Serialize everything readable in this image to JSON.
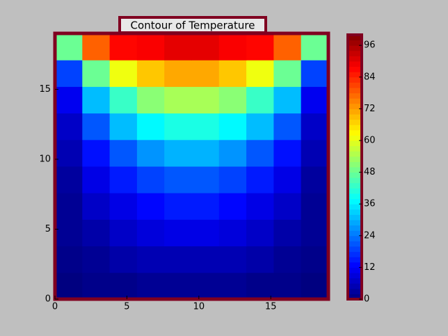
{
  "chart_data": {
    "type": "contour",
    "title": "Contour of Temperature",
    "colormap": "jet",
    "frame_color": "#800020",
    "xlim": [
      0,
      19
    ],
    "ylim": [
      0,
      19
    ],
    "xticks": [
      0,
      5,
      10,
      15
    ],
    "yticks": [
      0,
      5,
      10,
      15
    ],
    "z": [
      [
        0,
        1,
        1,
        2,
        2,
        2,
        2,
        1,
        1,
        0
      ],
      [
        1,
        2,
        4,
        5,
        5,
        5,
        5,
        4,
        2,
        1
      ],
      [
        2,
        4,
        7,
        9,
        10,
        10,
        9,
        7,
        4,
        2
      ],
      [
        2,
        7,
        10,
        13,
        15,
        15,
        13,
        10,
        7,
        2
      ],
      [
        3,
        10,
        15,
        19,
        21,
        21,
        19,
        15,
        10,
        3
      ],
      [
        5,
        14,
        21,
        27,
        30,
        30,
        27,
        21,
        14,
        5
      ],
      [
        7,
        21,
        31,
        37,
        40,
        40,
        37,
        31,
        21,
        7
      ],
      [
        11,
        31,
        43,
        51,
        54,
        54,
        51,
        43,
        31,
        11
      ],
      [
        19,
        48,
        61,
        68,
        71,
        71,
        68,
        61,
        48,
        19
      ],
      [
        48,
        78,
        87,
        88,
        90,
        90,
        88,
        87,
        78,
        48
      ]
    ],
    "clim": [
      0,
      100
    ],
    "cticks": [
      0,
      12,
      24,
      36,
      48,
      60,
      72,
      84,
      96
    ]
  }
}
